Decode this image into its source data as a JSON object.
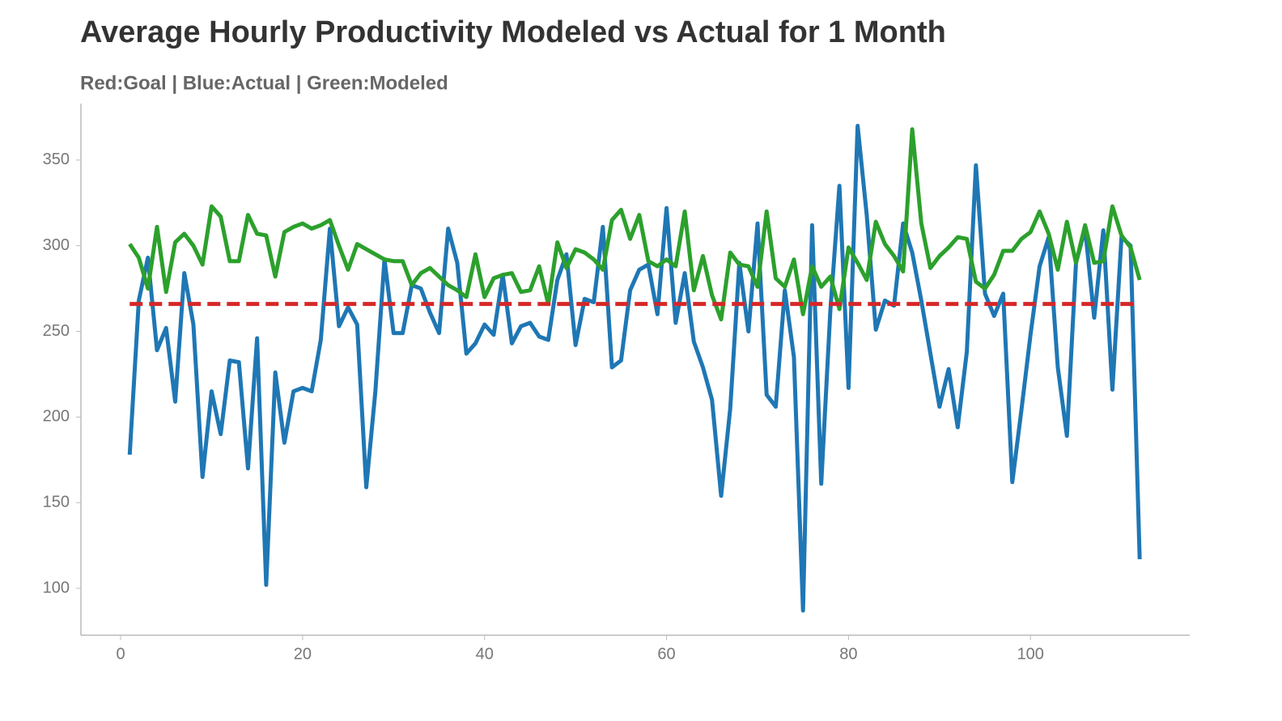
{
  "chart_data": {
    "type": "line",
    "title": "Average Hourly Productivity Modeled vs Actual for 1 Month",
    "subtitle": "Red:Goal | Blue:Actual | Green:Modeled",
    "x": [
      1,
      2,
      3,
      4,
      5,
      6,
      7,
      8,
      9,
      10,
      11,
      12,
      13,
      14,
      15,
      16,
      17,
      18,
      19,
      20,
      21,
      22,
      23,
      24,
      25,
      26,
      27,
      28,
      29,
      30,
      31,
      32,
      33,
      34,
      35,
      36,
      37,
      38,
      39,
      40,
      41,
      42,
      43,
      44,
      45,
      46,
      47,
      48,
      49,
      50,
      51,
      52,
      53,
      54,
      55,
      56,
      57,
      58,
      59,
      60,
      61,
      62,
      63,
      64,
      65,
      66,
      67,
      68,
      69,
      70,
      71,
      72,
      73,
      74,
      75,
      76,
      77,
      78,
      79,
      80,
      81,
      82,
      83,
      84,
      85,
      86,
      87,
      88,
      89,
      90,
      91,
      92,
      93,
      94,
      95,
      96,
      97,
      98,
      99,
      100,
      101,
      102,
      103,
      104,
      105,
      106,
      107,
      108,
      109,
      110,
      111,
      112
    ],
    "series": [
      {
        "color": "#1f77b4",
        "dashed": false,
        "values": [
          178,
          268,
          293,
          239,
          252,
          209,
          284,
          254,
          165,
          215,
          190,
          233,
          232,
          170,
          246,
          102,
          226,
          185,
          215,
          217,
          215,
          245,
          310,
          253,
          264,
          254,
          159,
          215,
          292,
          249,
          249,
          277,
          275,
          261,
          249,
          310,
          290,
          237,
          243,
          254,
          248,
          283,
          243,
          253,
          255,
          247,
          245,
          280,
          295,
          242,
          269,
          267,
          311,
          229,
          233,
          274,
          286,
          289,
          260,
          322,
          255,
          284,
          244,
          229,
          210,
          154,
          205,
          290,
          250,
          313,
          213,
          206,
          274,
          235,
          87,
          312,
          161,
          262,
          335,
          217,
          370,
          318,
          251,
          268,
          265,
          313,
          296,
          268,
          237,
          206,
          228,
          194,
          238,
          347,
          272,
          259,
          272,
          162,
          204,
          248,
          288,
          305,
          229,
          189,
          290,
          310,
          258,
          309,
          216,
          305,
          300,
          117
        ]
      },
      {
        "color": "#2ca02c",
        "dashed": false,
        "values": [
          301,
          293,
          275,
          311,
          273,
          302,
          307,
          300,
          289,
          323,
          317,
          291,
          291,
          318,
          307,
          306,
          282,
          308,
          311,
          313,
          310,
          312,
          315,
          300,
          286,
          301,
          298,
          295,
          292,
          291,
          291,
          277,
          284,
          287,
          282,
          277,
          274,
          270,
          295,
          270,
          281,
          283,
          284,
          273,
          274,
          288,
          266,
          302,
          287,
          298,
          296,
          292,
          286,
          315,
          321,
          304,
          318,
          291,
          288,
          292,
          288,
          320,
          274,
          294,
          271,
          257,
          296,
          289,
          288,
          276,
          320,
          281,
          276,
          292,
          260,
          288,
          276,
          282,
          263,
          299,
          290,
          280,
          314,
          301,
          294,
          285,
          368,
          313,
          287,
          294,
          299,
          305,
          304,
          279,
          275,
          283,
          297,
          297,
          304,
          308,
          320,
          307,
          286,
          314,
          290,
          312,
          290,
          291,
          323,
          306,
          299,
          280
        ]
      },
      {
        "color": "#d62728",
        "dashed": true,
        "x": [
          1,
          112
        ],
        "values": [
          266,
          266
        ]
      }
    ],
    "xlim": [
      -4.36,
      117.5
    ],
    "ylim": [
      72.6,
      383
    ],
    "xticks": [
      0,
      20,
      40,
      60,
      80,
      100
    ],
    "yticks": [
      100,
      150,
      200,
      250,
      300,
      350
    ],
    "grid": false
  }
}
